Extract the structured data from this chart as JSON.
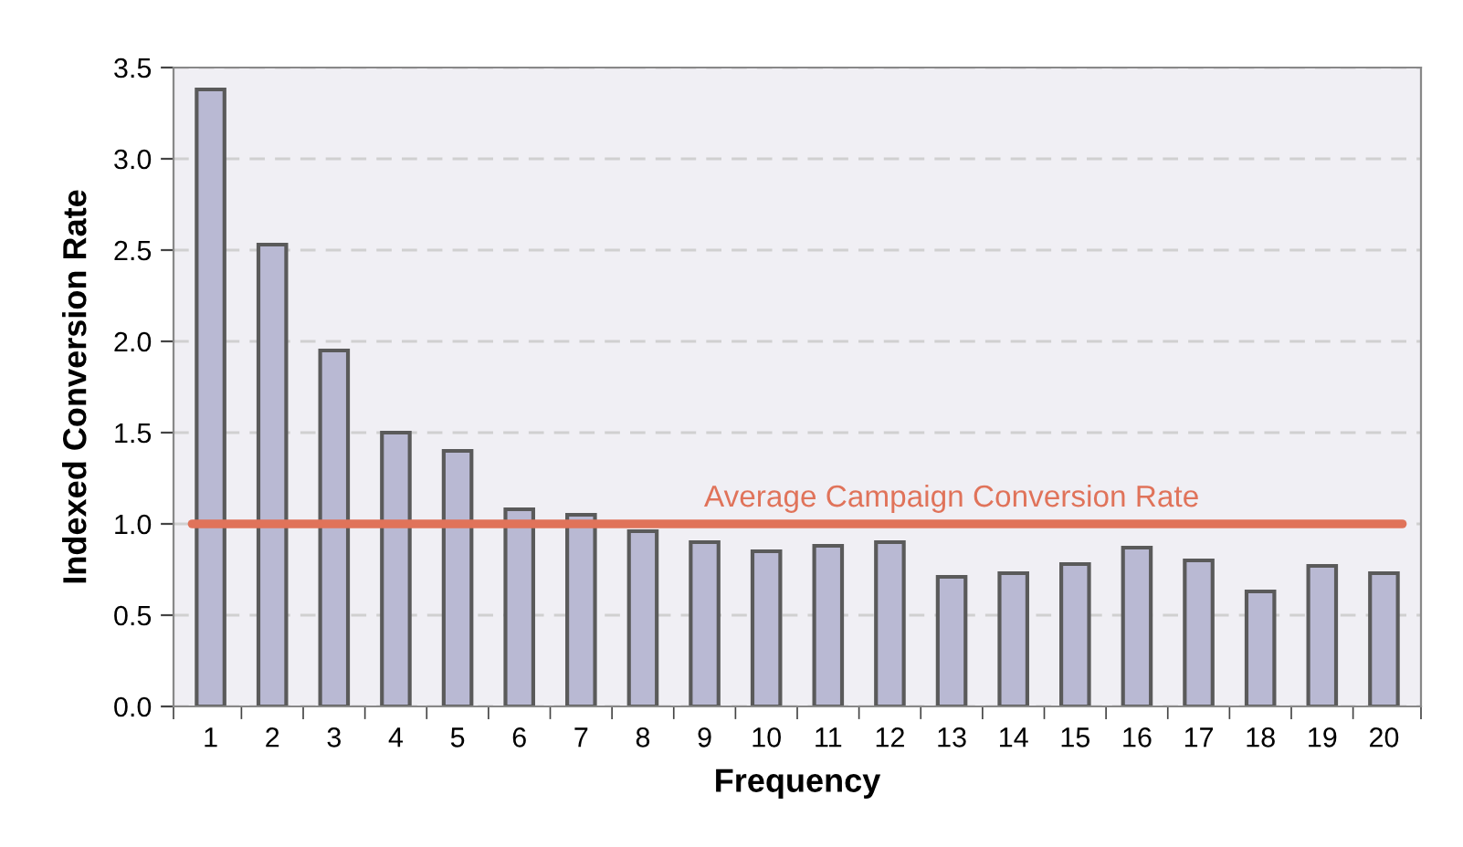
{
  "chart_data": {
    "type": "bar",
    "xlabel": "Frequency",
    "ylabel": "Indexed Conversion Rate",
    "categories": [
      "1",
      "2",
      "3",
      "4",
      "5",
      "6",
      "7",
      "8",
      "9",
      "10",
      "11",
      "12",
      "13",
      "14",
      "15",
      "16",
      "17",
      "18",
      "19",
      "20"
    ],
    "values": [
      3.38,
      2.53,
      1.95,
      1.5,
      1.4,
      1.08,
      1.05,
      0.96,
      0.9,
      0.85,
      0.88,
      0.9,
      0.71,
      0.73,
      0.78,
      0.87,
      0.8,
      0.63,
      0.77,
      0.73
    ],
    "color": "#b9b9d3",
    "ylim": [
      0,
      3.5
    ],
    "yticks": [
      {
        "value": 0,
        "label": "0.0"
      },
      0.5,
      {
        "value": 1,
        "label": "1.0"
      },
      1.5,
      {
        "value": 2,
        "label": "2.0"
      },
      2.5,
      {
        "value": 3,
        "label": "3.0"
      },
      3.5
    ],
    "grid": "y",
    "ref_lines": [
      {
        "axis": "y",
        "value": 1.0,
        "label": "Average Campaign Conversion Rate",
        "color": "#e0735a"
      }
    ]
  }
}
